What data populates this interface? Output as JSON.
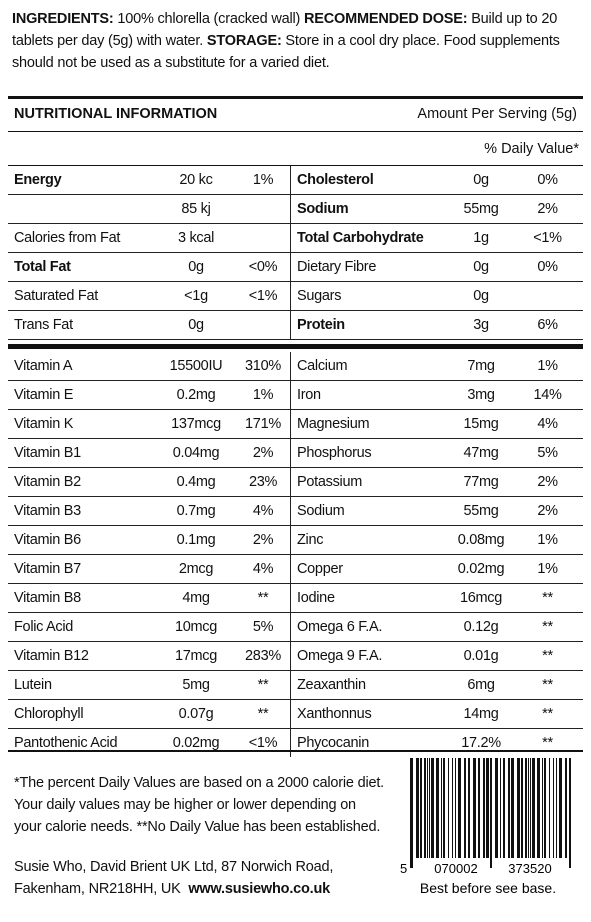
{
  "ingredients": [
    {
      "label": "INGREDIENTS:",
      "text": "100% chlorella (cracked wall)"
    },
    {
      "label": "RECOMMENDED DOSE:",
      "text": "Build up to 20 tablets per day (5g) with water."
    },
    {
      "label": "STORAGE:",
      "text": "Store in a cool dry place. Food supplements should not be used as a substitute for a varied diet."
    }
  ],
  "nutrition": {
    "title": "NUTRITIONAL INFORMATION",
    "serving": "Amount Per Serving (5g)",
    "daily_value_header": "% Daily Value*",
    "macros": [
      [
        "Energy",
        "20 kc",
        "1%",
        "Cholesterol",
        "0g",
        "0%"
      ],
      [
        null,
        "85 kj",
        null,
        "Sodium",
        "55mg",
        "2%"
      ],
      [
        "Calories from Fat",
        "3 kcal",
        null,
        "Total Carbohydrate",
        "1g",
        "<1%"
      ],
      [
        "Total Fat",
        "0g",
        "<0%",
        "Dietary Fibre",
        "0g",
        "0%"
      ],
      [
        "Saturated Fat",
        "<1g",
        "<1%",
        "Sugars",
        "0g",
        null
      ],
      [
        "Trans Fat",
        "0g",
        null,
        "Protein",
        "3g",
        "6%"
      ]
    ],
    "micros": [
      [
        "Vitamin A",
        "15500IU",
        "310%",
        "Calcium",
        "7mg",
        "1%"
      ],
      [
        "Vitamin E",
        "0.2mg",
        "1%",
        "Iron",
        "3mg",
        "14%"
      ],
      [
        "Vitamin K",
        "137mcg",
        "171%",
        "Magnesium",
        "15mg",
        "4%"
      ],
      [
        "Vitamin B1",
        "0.04mg",
        "2%",
        "Phosphorus",
        "47mg",
        "5%"
      ],
      [
        "Vitamin B2",
        "0.4mg",
        "23%",
        "Potassium",
        "77mg",
        "2%"
      ],
      [
        "Vitamin B3",
        "0.7mg",
        "4%",
        "Sodium",
        "55mg",
        "2%"
      ],
      [
        "Vitamin B6",
        "0.1mg",
        "2%",
        "Zinc",
        "0.08mg",
        "1%"
      ],
      [
        "Vitamin B7",
        "2mcg",
        "4%",
        "Copper",
        "0.02mg",
        "1%"
      ],
      [
        "Vitamin B8",
        "4mg",
        "**",
        "Iodine",
        "16mcg",
        "**"
      ],
      [
        "Folic Acid",
        "10mcg",
        "5%",
        "Omega 6 F.A.",
        "0.12g",
        "**"
      ],
      [
        "Vitamin B12",
        "17mcg",
        "283%",
        "Omega 9 F.A.",
        "0.01g",
        "**"
      ],
      [
        "Lutein",
        "5mg",
        "**",
        "Zeaxanthin",
        "6mg",
        "**"
      ],
      [
        "Chlorophyll",
        "0.07g",
        "**",
        "Xanthonnus",
        "14mg",
        "**"
      ],
      [
        "Pantothenic Acid",
        "0.02mg",
        "<1%",
        "Phycocanin",
        "17.2%",
        "**"
      ]
    ]
  },
  "footnote": "*The percent Daily Values are based on a 2000 calorie diet. Your daily values may be higher  or lower depending on your calorie needs. **No Daily Value has been established.",
  "address": "Susie Who, David Brient UK Ltd, 87 Norwich Road, Fakenham, NR218HH, UK",
  "website": "www.susiewho.co.uk",
  "barcode": [
    "5",
    "070002",
    "373520"
  ],
  "best_before": "Best before see base."
}
